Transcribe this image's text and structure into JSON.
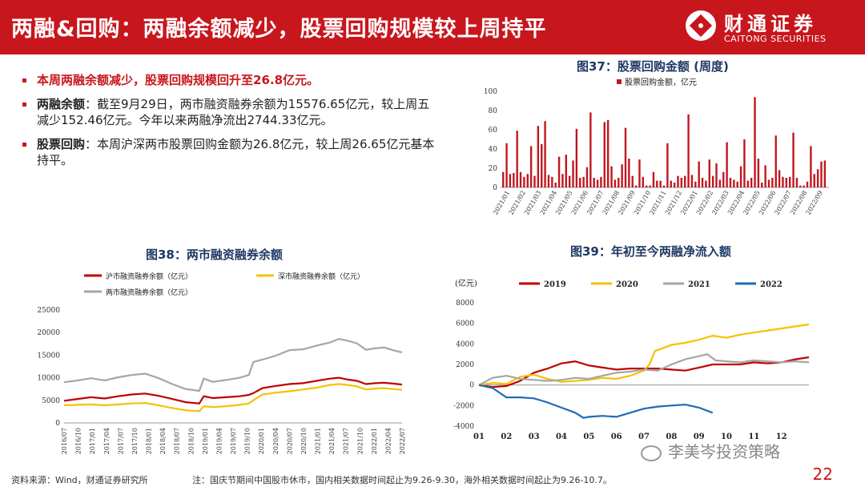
{
  "header": {
    "title": "两融&回购：两融余额减少，股票回购规模较上周持平",
    "logo_cn": "财通证券",
    "logo_en": "CAITONG SECURITIES"
  },
  "bullets": {
    "headline": "本周两融余额减少，股票回购规模回升至26.8亿元。",
    "margin_label": "两融余额",
    "margin_text": "：截至9月29日，两市融资融券余额为15576.65亿元，较上周五减少152.46亿元。今年以来两融净流出2744.33亿元。",
    "buyback_label": "股票回购",
    "buyback_text": "：本周沪深两市股票回购金额为26.8亿元，较上周26.65亿元基本持平。"
  },
  "colors": {
    "brand": "#c8161d",
    "title_blue": "#1f3864",
    "bar_red": "#c0171f",
    "sh_red": "#c00000",
    "sz_yellow": "#f5c200",
    "total_gray": "#a6a6a6",
    "y2022_blue": "#1f6bb5"
  },
  "chart_data": [
    {
      "id": "fig37",
      "type": "bar",
      "title": "图37：股票回购金额 (周度)",
      "legend": [
        "股票回购金额，亿元"
      ],
      "ylim": [
        0,
        100
      ],
      "yticks": [
        0,
        20,
        40,
        60,
        80,
        100
      ],
      "xticks": [
        "2021/01",
        "2021/02",
        "2021/03",
        "2021/04",
        "2021/05",
        "2021/06",
        "2021/07",
        "2021/08",
        "2021/09",
        "2021/10",
        "2021/11",
        "2021/12",
        "2022/01",
        "2022/02",
        "2022/03",
        "2022/04",
        "2022/05",
        "2022/06",
        "2022/07",
        "2022/08",
        "2022/09"
      ],
      "values": [
        16,
        46,
        14,
        15,
        59,
        16,
        11,
        14,
        43,
        12,
        64,
        45,
        69,
        13,
        11,
        5,
        32,
        14,
        34,
        12,
        28,
        61,
        10,
        11,
        21,
        78,
        10,
        8,
        11,
        68,
        70,
        22,
        8,
        10,
        24,
        62,
        30,
        12,
        2,
        29,
        11,
        2,
        2,
        16,
        7,
        7,
        2,
        46,
        7,
        5,
        12,
        10,
        12,
        76,
        13,
        6,
        27,
        10,
        7,
        29,
        12,
        25,
        8,
        16,
        47,
        10,
        8,
        6,
        22,
        50,
        7,
        10,
        94,
        30,
        5,
        23,
        8,
        10,
        54,
        18,
        11,
        10,
        11,
        57,
        10,
        2,
        2,
        6,
        43,
        14,
        19,
        27,
        28
      ]
    },
    {
      "id": "fig38",
      "type": "line",
      "title": "图38：两市融资融券余额",
      "series_names": [
        "沪市融资融券余额（亿元）",
        "深市融资融券余额（亿元）",
        "两市融资融券余额（亿元）"
      ],
      "ylim": [
        0,
        25000
      ],
      "yticks": [
        0,
        5000,
        10000,
        15000,
        20000,
        25000
      ],
      "xticks": [
        "2016/07",
        "2016/10",
        "2017/01",
        "2017/04",
        "2017/07",
        "2017/10",
        "2018/01",
        "2018/04",
        "2018/07",
        "2018/10",
        "2019/01",
        "2019/04",
        "2019/07",
        "2019/10",
        "2020/01",
        "2020/04",
        "2020/07",
        "2020/10",
        "2021/01",
        "2021/04",
        "2021/07",
        "2021/10",
        "2022/01",
        "2022/04",
        "2022/07"
      ],
      "x_range": [
        0,
        75
      ],
      "series": [
        {
          "name": "沪市融资融券余额（亿元）",
          "points": [
            [
              0,
              4900
            ],
            [
              3,
              5300
            ],
            [
              6,
              5700
            ],
            [
              9,
              5400
            ],
            [
              12,
              5900
            ],
            [
              15,
              6300
            ],
            [
              18,
              6500
            ],
            [
              21,
              6000
            ],
            [
              24,
              5300
            ],
            [
              27,
              4600
            ],
            [
              30,
              4300
            ],
            [
              31,
              5900
            ],
            [
              33,
              5500
            ],
            [
              36,
              5700
            ],
            [
              39,
              5900
            ],
            [
              41,
              6200
            ],
            [
              42,
              6600
            ],
            [
              44,
              7700
            ],
            [
              47,
              8200
            ],
            [
              50,
              8600
            ],
            [
              53,
              8800
            ],
            [
              56,
              9300
            ],
            [
              59,
              9800
            ],
            [
              61,
              10000
            ],
            [
              63,
              9600
            ],
            [
              65,
              9300
            ],
            [
              67,
              8600
            ],
            [
              69,
              8800
            ],
            [
              71,
              8900
            ],
            [
              73,
              8700
            ],
            [
              75,
              8500
            ]
          ]
        },
        {
          "name": "深市融资融券余额（亿元）",
          "points": [
            [
              0,
              3900
            ],
            [
              3,
              4000
            ],
            [
              6,
              4100
            ],
            [
              9,
              3900
            ],
            [
              12,
              4100
            ],
            [
              15,
              4300
            ],
            [
              18,
              4400
            ],
            [
              21,
              3900
            ],
            [
              24,
              3300
            ],
            [
              27,
              2800
            ],
            [
              30,
              2600
            ],
            [
              31,
              3700
            ],
            [
              33,
              3500
            ],
            [
              36,
              3700
            ],
            [
              39,
              4000
            ],
            [
              41,
              4300
            ],
            [
              42,
              5000
            ],
            [
              44,
              6300
            ],
            [
              47,
              6700
            ],
            [
              50,
              7000
            ],
            [
              53,
              7400
            ],
            [
              56,
              7800
            ],
            [
              59,
              8400
            ],
            [
              61,
              8600
            ],
            [
              63,
              8400
            ],
            [
              65,
              8100
            ],
            [
              67,
              7400
            ],
            [
              69,
              7600
            ],
            [
              71,
              7700
            ],
            [
              73,
              7500
            ],
            [
              75,
              7300
            ]
          ]
        },
        {
          "name": "两市融资融券余额（亿元）",
          "points": [
            [
              0,
              9000
            ],
            [
              3,
              9400
            ],
            [
              6,
              9900
            ],
            [
              9,
              9400
            ],
            [
              12,
              10100
            ],
            [
              15,
              10600
            ],
            [
              18,
              10900
            ],
            [
              21,
              9900
            ],
            [
              24,
              8600
            ],
            [
              27,
              7500
            ],
            [
              30,
              7100
            ],
            [
              31,
              9800
            ],
            [
              33,
              9100
            ],
            [
              36,
              9500
            ],
            [
              39,
              10000
            ],
            [
              41,
              10600
            ],
            [
              42,
              13500
            ],
            [
              44,
              14000
            ],
            [
              47,
              14900
            ],
            [
              50,
              16100
            ],
            [
              53,
              16300
            ],
            [
              56,
              17100
            ],
            [
              59,
              17800
            ],
            [
              61,
              18600
            ],
            [
              63,
              18200
            ],
            [
              65,
              17600
            ],
            [
              67,
              16200
            ],
            [
              69,
              16500
            ],
            [
              71,
              16700
            ],
            [
              73,
              16100
            ],
            [
              75,
              15600
            ]
          ]
        }
      ]
    },
    {
      "id": "fig39",
      "type": "line",
      "title": "图39：年初至今两融净流入额",
      "unit_label": "(亿元)",
      "series_names": [
        "2019",
        "2020",
        "2021",
        "2022"
      ],
      "ylim": [
        -4000,
        8000
      ],
      "yticks": [
        -4000,
        -2000,
        0,
        2000,
        4000,
        6000,
        8000
      ],
      "xticks": [
        "01",
        "02",
        "03",
        "04",
        "05",
        "06",
        "07",
        "08",
        "09",
        "10",
        "11",
        "12"
      ],
      "x_range": [
        1,
        13
      ],
      "series": [
        {
          "name": "2019",
          "points": [
            [
              1,
              0
            ],
            [
              1.5,
              -200
            ],
            [
              2,
              -100
            ],
            [
              2.5,
              400
            ],
            [
              3,
              1200
            ],
            [
              3.5,
              1600
            ],
            [
              4,
              2100
            ],
            [
              4.5,
              2300
            ],
            [
              5,
              1900
            ],
            [
              5.5,
              1700
            ],
            [
              6,
              1500
            ],
            [
              6.5,
              1600
            ],
            [
              7,
              1600
            ],
            [
              7.5,
              1600
            ],
            [
              8,
              1500
            ],
            [
              8.5,
              1400
            ],
            [
              9,
              1700
            ],
            [
              9.5,
              2000
            ],
            [
              10,
              2000
            ],
            [
              10.5,
              2000
            ],
            [
              11,
              2200
            ],
            [
              11.5,
              2100
            ],
            [
              12,
              2200
            ],
            [
              12.5,
              2500
            ],
            [
              13,
              2700
            ]
          ]
        },
        {
          "name": "2020",
          "points": [
            [
              1,
              0
            ],
            [
              1.5,
              200
            ],
            [
              2,
              100
            ],
            [
              2.5,
              800
            ],
            [
              3,
              1000
            ],
            [
              3.5,
              600
            ],
            [
              4,
              300
            ],
            [
              4.5,
              400
            ],
            [
              5,
              500
            ],
            [
              5.5,
              700
            ],
            [
              6,
              600
            ],
            [
              6.5,
              900
            ],
            [
              7,
              1400
            ],
            [
              7.2,
              2000
            ],
            [
              7.4,
              3300
            ],
            [
              8,
              3900
            ],
            [
              8.5,
              4100
            ],
            [
              9,
              4400
            ],
            [
              9.5,
              4800
            ],
            [
              10,
              4600
            ],
            [
              10.5,
              4900
            ],
            [
              11,
              5100
            ],
            [
              11.5,
              5300
            ],
            [
              12,
              5500
            ],
            [
              12.5,
              5700
            ],
            [
              13,
              5900
            ]
          ]
        },
        {
          "name": "2021",
          "points": [
            [
              1,
              0
            ],
            [
              1.5,
              700
            ],
            [
              2,
              900
            ],
            [
              2.5,
              600
            ],
            [
              3,
              500
            ],
            [
              3.5,
              400
            ],
            [
              4,
              500
            ],
            [
              4.5,
              700
            ],
            [
              5,
              600
            ],
            [
              5.5,
              900
            ],
            [
              6,
              1200
            ],
            [
              6.5,
              1300
            ],
            [
              7,
              1500
            ],
            [
              7.5,
              1400
            ],
            [
              8,
              2000
            ],
            [
              8.5,
              2500
            ],
            [
              9,
              2800
            ],
            [
              9.3,
              3000
            ],
            [
              9.6,
              2400
            ],
            [
              10,
              2300
            ],
            [
              10.5,
              2200
            ],
            [
              11,
              2400
            ],
            [
              11.5,
              2300
            ],
            [
              12,
              2200
            ],
            [
              12.5,
              2300
            ],
            [
              13,
              2200
            ]
          ]
        },
        {
          "name": "2022",
          "points": [
            [
              1,
              0
            ],
            [
              1.5,
              -300
            ],
            [
              2,
              -1200
            ],
            [
              2.5,
              -1200
            ],
            [
              3,
              -1300
            ],
            [
              3.5,
              -1700
            ],
            [
              4,
              -2200
            ],
            [
              4.5,
              -2700
            ],
            [
              4.8,
              -3200
            ],
            [
              5,
              -3100
            ],
            [
              5.5,
              -3000
            ],
            [
              6,
              -3100
            ],
            [
              6.5,
              -2700
            ],
            [
              7,
              -2300
            ],
            [
              7.5,
              -2100
            ],
            [
              8,
              -2000
            ],
            [
              8.5,
              -1900
            ],
            [
              9,
              -2200
            ],
            [
              9.5,
              -2700
            ]
          ]
        }
      ]
    }
  ],
  "footer": {
    "source": "资料来源：Wind，财通证券研究所",
    "note": "注：国庆节期间中国股市休市，国内相关数据时间起止为9.26-9.30，海外相关数据时间起止为9.26-10.7。",
    "page": "22",
    "watermark": "李美岑投资策略"
  }
}
